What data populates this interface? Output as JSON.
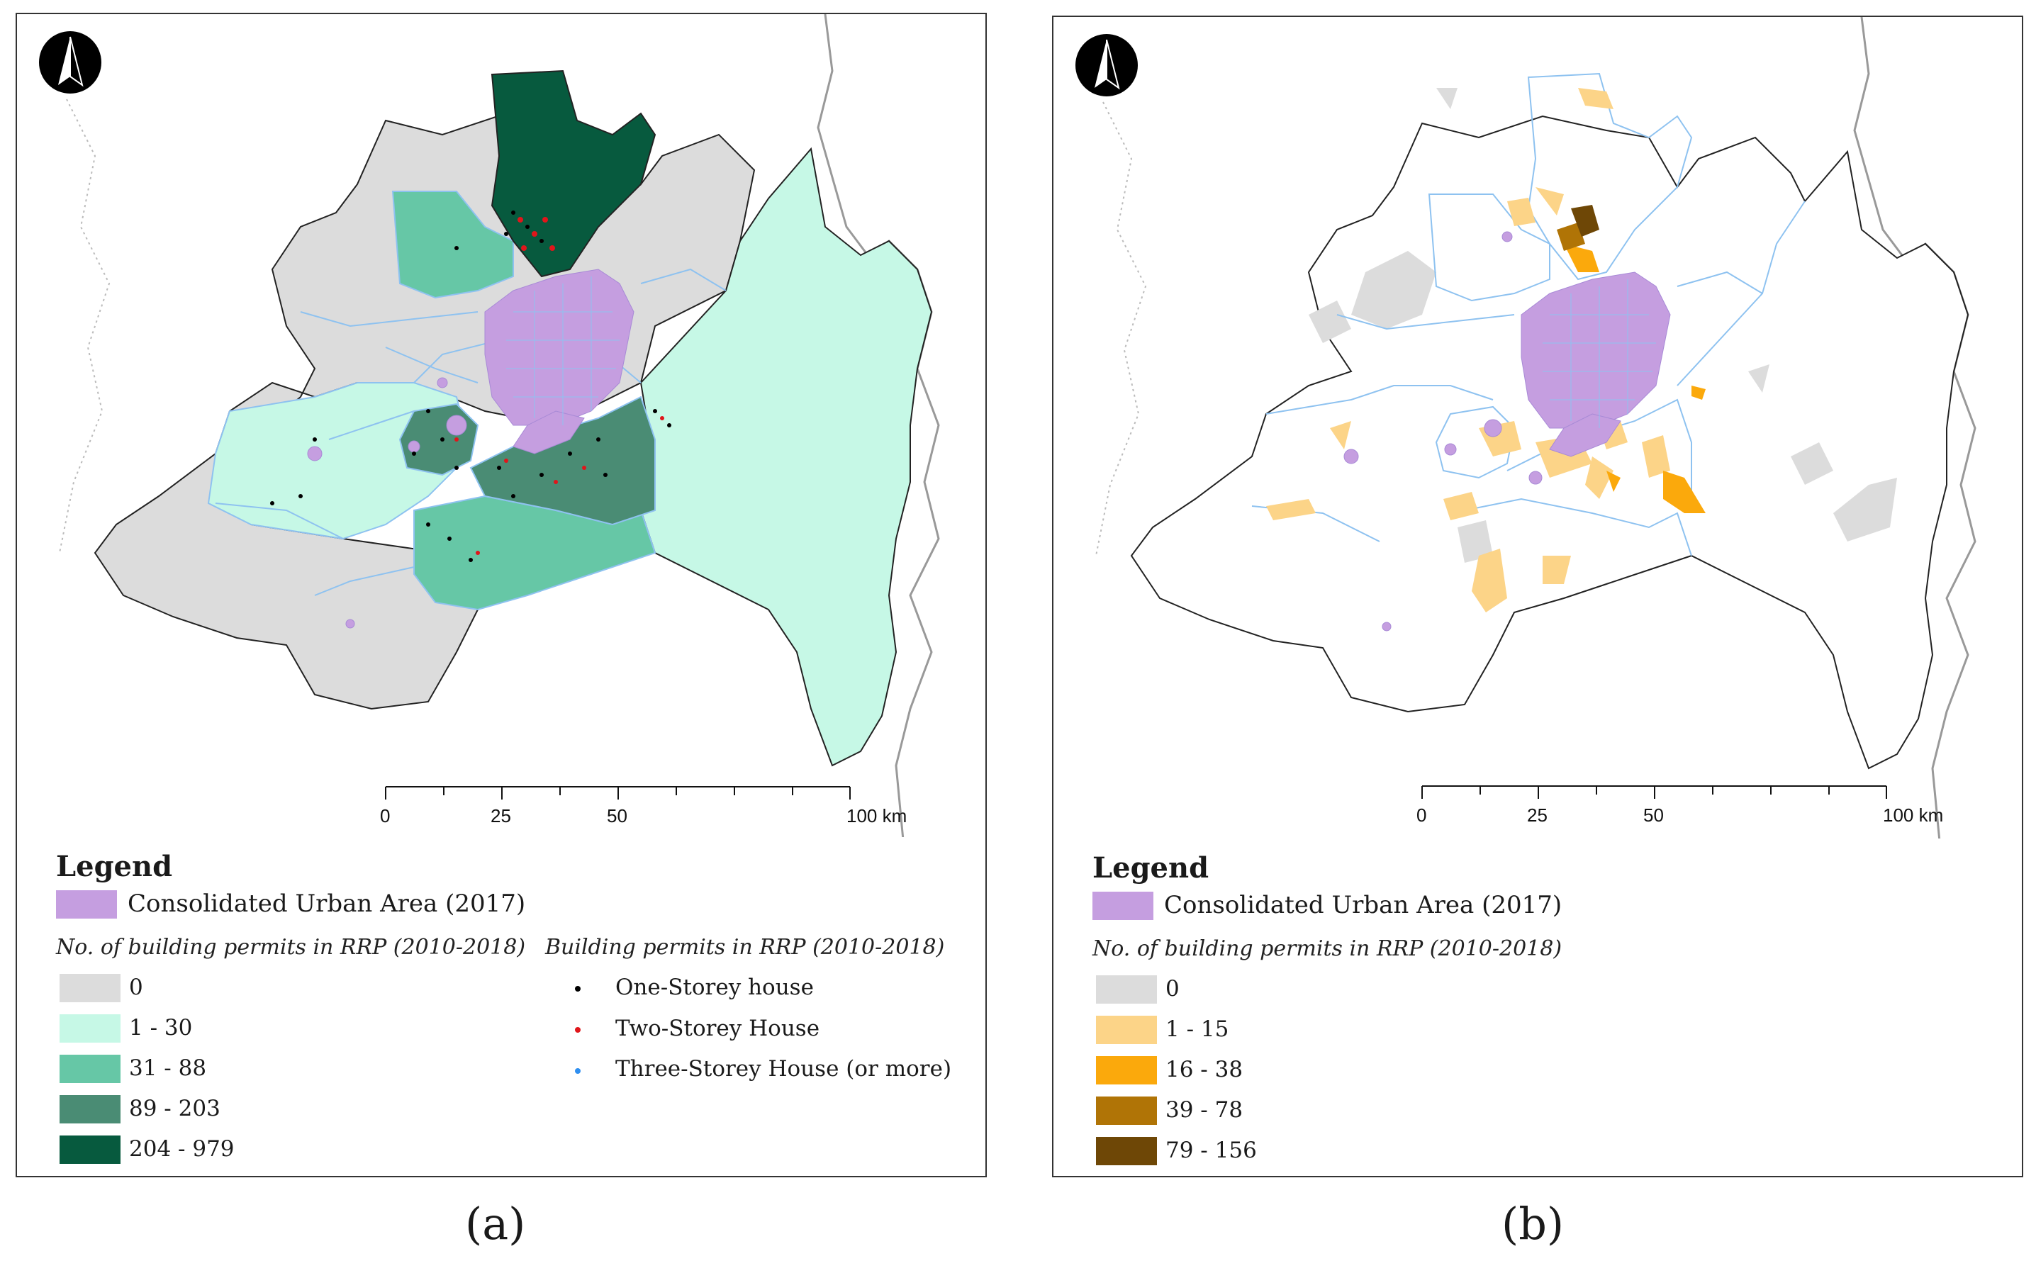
{
  "panels": [
    {
      "id": "a",
      "caption": "(a)",
      "legend": {
        "title": "Legend",
        "urban_area": "Consolidated Urban Area (2017)",
        "count_heading": "No. of building permits in RRP (2010-2018)",
        "classes": [
          {
            "label": "0",
            "color": "#dcdcdc"
          },
          {
            "label": "1 - 30",
            "color": "#c6f8e6"
          },
          {
            "label": "31 - 88",
            "color": "#66c7a6"
          },
          {
            "label": "89 - 203",
            "color": "#4a8c74"
          },
          {
            "label": "204 - 979",
            "color": "#075a3e"
          }
        ],
        "points_heading": "Building permits in RRP (2010-2018)",
        "points": [
          {
            "label": "One-Storey house",
            "color": "#000000"
          },
          {
            "label": "Two-Storey House",
            "color": "#e0161b"
          },
          {
            "label": "Three-Storey House (or more)",
            "color": "#2f8ff0"
          }
        ]
      },
      "scale": {
        "ticks": [
          "0",
          "25",
          "50",
          "100 km"
        ]
      }
    },
    {
      "id": "b",
      "caption": "(b)",
      "legend": {
        "title": "Legend",
        "urban_area": "Consolidated Urban Area (2017)",
        "count_heading": "No. of building permits in RRP (2010-2018)",
        "classes": [
          {
            "label": "0",
            "color": "#dcdcdc"
          },
          {
            "label": "1 - 15",
            "color": "#fcd488"
          },
          {
            "label": "16 - 38",
            "color": "#fba90c"
          },
          {
            "label": "39 - 78",
            "color": "#b07406"
          },
          {
            "label": "79 - 156",
            "color": "#6e4706"
          }
        ]
      },
      "scale": {
        "ticks": [
          "0",
          "25",
          "50",
          "100 km"
        ]
      }
    }
  ],
  "colors": {
    "urban": "#c59ee0",
    "boundary": "#8ec2f0",
    "outline": "#222222"
  }
}
